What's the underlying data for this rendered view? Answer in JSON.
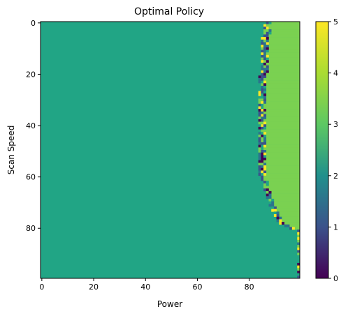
{
  "chart_data": {
    "type": "heatmap",
    "title": "Optimal Policy",
    "xlabel": "Power",
    "ylabel": "Scan Speed",
    "grid": false,
    "colormap": "viridis",
    "rows": 100,
    "cols": 100,
    "xlim": [
      -0.5,
      99.5
    ],
    "ylim": [
      99.5,
      -0.5
    ],
    "xticks": [
      "0",
      "20",
      "40",
      "60",
      "80"
    ],
    "yticks": [
      "0",
      "20",
      "40",
      "60",
      "80"
    ],
    "colorbar": {
      "min": 0,
      "max": 5,
      "ticks": [
        "0",
        "1",
        "2",
        "3",
        "4",
        "5"
      ]
    },
    "regions": {
      "left_value": 3,
      "right_value": 4,
      "bottom_right_value": 3,
      "boundary_noise_values": [
        0,
        1,
        2,
        3,
        4,
        5
      ],
      "boundary_column_by_row": [
        [
          0,
          88.5
        ],
        [
          10,
          87.5
        ],
        [
          20,
          87
        ],
        [
          30,
          86.5
        ],
        [
          40,
          86
        ],
        [
          50,
          86
        ],
        [
          60,
          86.5
        ],
        [
          66,
          88
        ],
        [
          72,
          90
        ],
        [
          78,
          93
        ],
        [
          80,
          97
        ],
        [
          81,
          100
        ]
      ],
      "right_edge_noise_rows": [
        81,
        99
      ]
    }
  }
}
